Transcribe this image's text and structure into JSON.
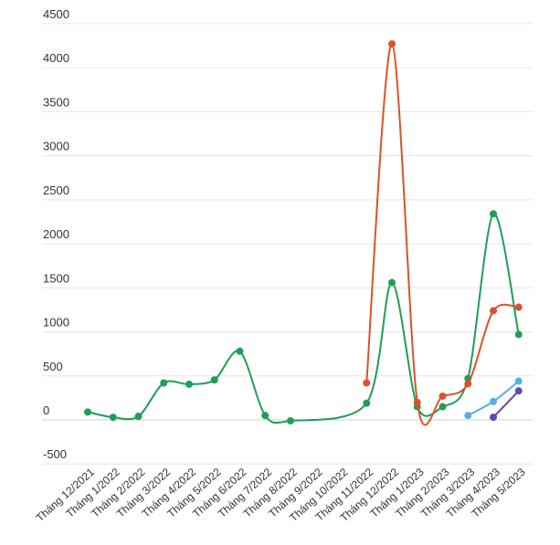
{
  "chart_data": {
    "type": "line",
    "title": "",
    "xlabel": "",
    "ylabel": "",
    "ylim": [
      -500,
      4500
    ],
    "yticks": [
      -500,
      0,
      500,
      1000,
      1500,
      2000,
      2500,
      3000,
      3500,
      4000,
      4500
    ],
    "grid": true,
    "legend": "none",
    "categories": [
      "Tháng 12/2021",
      "Tháng 1/2022",
      "Tháng 2/2022",
      "Tháng 3/2022",
      "Tháng 4/2022",
      "Tháng 5/2022",
      "Tháng 6/2022",
      "Tháng 7/2022",
      "Tháng 8/2022",
      "Tháng 9/2022",
      "Tháng 10/2022",
      "Tháng 11/2022",
      "Tháng 12/2022",
      "Tháng 1/2023",
      "Tháng 2/2023",
      "Tháng 3/2023",
      "Tháng 4/2023",
      "Tháng 5/2023"
    ],
    "series": [
      {
        "color": "#1e9e57",
        "values": [
          90,
          30,
          40,
          420,
          405,
          455,
          780,
          50,
          -10,
          null,
          null,
          190,
          1560,
          150,
          150,
          470,
          2340,
          970
        ]
      },
      {
        "color": "#d9532b",
        "values": [
          null,
          null,
          null,
          null,
          null,
          null,
          null,
          null,
          null,
          null,
          null,
          420,
          4270,
          200,
          270,
          410,
          1240,
          1280
        ]
      },
      {
        "color": "#5aafe0",
        "values": [
          null,
          null,
          null,
          null,
          null,
          null,
          null,
          null,
          null,
          null,
          null,
          null,
          null,
          null,
          null,
          50,
          210,
          440
        ]
      },
      {
        "color": "#5c4ab5",
        "values": [
          null,
          null,
          null,
          null,
          null,
          null,
          null,
          null,
          null,
          null,
          null,
          null,
          null,
          null,
          null,
          null,
          30,
          330
        ]
      }
    ]
  }
}
